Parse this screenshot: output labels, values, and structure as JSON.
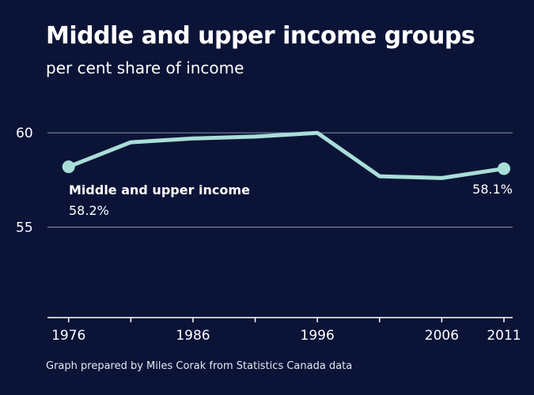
{
  "colors": {
    "background": "#0b1437",
    "line": "#a9ded8",
    "grid": "#8a93ad",
    "text": "#ffffff"
  },
  "source": "Graph prepared by Miles Corak from Statistics Canada data",
  "chart_data": {
    "type": "line",
    "title": "Middle and upper income groups",
    "subtitle": "per cent share of income",
    "xlabel": "",
    "ylabel": "",
    "x": [
      1976,
      1981,
      1986,
      1991,
      1996,
      2001,
      2006,
      2011
    ],
    "xticks": [
      1976,
      1981,
      1986,
      1991,
      1996,
      2001,
      2006,
      2011
    ],
    "xtick_labels": [
      "1976",
      "",
      "1986",
      "",
      "1996",
      "",
      "2006",
      "2011"
    ],
    "xlim": [
      1974.3,
      2011.7
    ],
    "ylim": [
      50.2,
      61.6
    ],
    "yticks": [
      55,
      60
    ],
    "grid": "horizontal",
    "series": [
      {
        "name": "Middle and upper income",
        "values": [
          58.2,
          59.5,
          59.7,
          59.8,
          60.0,
          57.7,
          57.6,
          58.1
        ]
      }
    ],
    "annotations": {
      "series_label": "Middle and upper income",
      "start_value": "58.2%",
      "end_value": "58.1%"
    }
  }
}
